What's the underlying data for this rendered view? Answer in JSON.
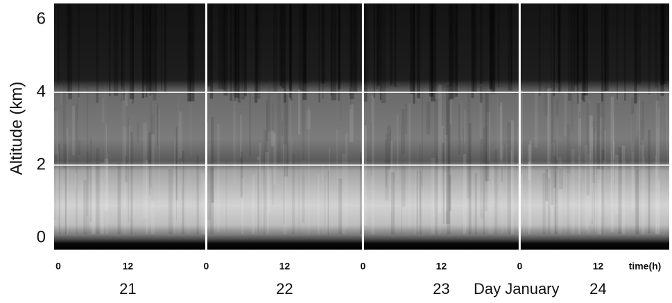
{
  "chart_data": {
    "type": "lidar",
    "y_label": "Altitude (km)",
    "ylim": [
      -0.32,
      6.44
    ],
    "yticks": [
      0,
      2,
      4,
      6
    ],
    "x_label": "time(h)",
    "xlim": [
      0.7,
      94.9
    ],
    "xticks": [
      {
        "value": 0,
        "label": "0"
      },
      {
        "value": 12,
        "label": "12"
      },
      {
        "value": 24,
        "label": "0"
      },
      {
        "value": 36,
        "label": "12"
      },
      {
        "value": 48,
        "label": "0"
      },
      {
        "value": 60,
        "label": "12"
      },
      {
        "value": 72,
        "label": "0"
      },
      {
        "value": 84,
        "label": "12"
      }
    ],
    "day_label": "Day January",
    "day_ticks": [
      {
        "value": 12,
        "label": "21"
      },
      {
        "value": 36,
        "label": "22"
      },
      {
        "value": 60,
        "label": "23"
      },
      {
        "value": 84,
        "label": "24"
      }
    ],
    "grid_y": [
      2,
      4
    ],
    "grid_x": [
      24,
      48,
      72
    ]
  }
}
